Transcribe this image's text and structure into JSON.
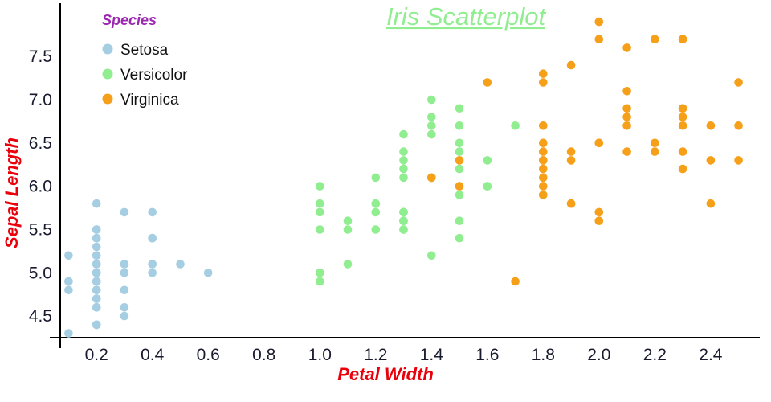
{
  "chart_data": {
    "type": "scatter",
    "title": "Iris Scatterplot",
    "xlabel": "Petal Width",
    "ylabel": "Sepal Length",
    "xlim": [
      0.07,
      2.55
    ],
    "ylim": [
      4.25,
      8.05
    ],
    "x_ticks": [
      "0.2",
      "0.4",
      "0.6",
      "0.8",
      "1.0",
      "1.2",
      "1.4",
      "1.6",
      "1.8",
      "2.0",
      "2.2",
      "2.4"
    ],
    "y_ticks": [
      "4.5",
      "5.0",
      "5.5",
      "6.0",
      "6.5",
      "7.0",
      "7.5"
    ],
    "legend": {
      "title": "Species",
      "position": "top-left"
    },
    "grid": false,
    "axis_color": "#000000",
    "tick_color": "#1a1a2e",
    "title_color": "#90ee90",
    "label_color": "#e8000b",
    "legend_title_color": "#9c27b0",
    "series": [
      {
        "name": "Setosa",
        "color": "#a6cee3",
        "points": [
          [
            0.2,
            5.1
          ],
          [
            0.2,
            4.9
          ],
          [
            0.2,
            4.7
          ],
          [
            0.2,
            4.6
          ],
          [
            0.2,
            5.0
          ],
          [
            0.4,
            5.4
          ],
          [
            0.3,
            4.6
          ],
          [
            0.2,
            5.0
          ],
          [
            0.2,
            4.4
          ],
          [
            0.1,
            4.9
          ],
          [
            0.2,
            5.4
          ],
          [
            0.2,
            4.8
          ],
          [
            0.1,
            4.8
          ],
          [
            0.1,
            4.3
          ],
          [
            0.2,
            5.8
          ],
          [
            0.4,
            5.7
          ],
          [
            0.4,
            5.4
          ],
          [
            0.3,
            5.1
          ],
          [
            0.3,
            5.7
          ],
          [
            0.3,
            5.1
          ],
          [
            0.2,
            5.4
          ],
          [
            0.4,
            5.1
          ],
          [
            0.2,
            4.6
          ],
          [
            0.5,
            5.1
          ],
          [
            0.2,
            4.8
          ],
          [
            0.2,
            5.0
          ],
          [
            0.4,
            5.0
          ],
          [
            0.2,
            5.2
          ],
          [
            0.2,
            5.2
          ],
          [
            0.2,
            4.7
          ],
          [
            0.2,
            4.8
          ],
          [
            0.4,
            5.4
          ],
          [
            0.1,
            5.2
          ],
          [
            0.2,
            5.5
          ],
          [
            0.2,
            4.9
          ],
          [
            0.2,
            5.0
          ],
          [
            0.2,
            5.5
          ],
          [
            0.1,
            4.9
          ],
          [
            0.2,
            4.4
          ],
          [
            0.2,
            5.1
          ],
          [
            0.3,
            5.0
          ],
          [
            0.3,
            4.5
          ],
          [
            0.2,
            4.4
          ],
          [
            0.6,
            5.0
          ],
          [
            0.4,
            5.1
          ],
          [
            0.3,
            4.8
          ],
          [
            0.2,
            5.1
          ],
          [
            0.2,
            4.6
          ],
          [
            0.2,
            5.3
          ],
          [
            0.2,
            5.0
          ]
        ]
      },
      {
        "name": "Versicolor",
        "color": "#90ee90",
        "points": [
          [
            1.4,
            7.0
          ],
          [
            1.5,
            6.4
          ],
          [
            1.5,
            6.9
          ],
          [
            1.3,
            5.5
          ],
          [
            1.5,
            6.5
          ],
          [
            1.3,
            5.7
          ],
          [
            1.6,
            6.3
          ],
          [
            1.0,
            4.9
          ],
          [
            1.3,
            6.6
          ],
          [
            1.4,
            5.2
          ],
          [
            1.0,
            5.0
          ],
          [
            1.5,
            5.9
          ],
          [
            1.0,
            6.0
          ],
          [
            1.4,
            6.1
          ],
          [
            1.3,
            5.6
          ],
          [
            1.4,
            6.7
          ],
          [
            1.5,
            5.6
          ],
          [
            1.0,
            5.8
          ],
          [
            1.5,
            6.2
          ],
          [
            1.1,
            5.6
          ],
          [
            1.8,
            5.9
          ],
          [
            1.3,
            6.1
          ],
          [
            1.5,
            6.3
          ],
          [
            1.2,
            6.1
          ],
          [
            1.3,
            6.4
          ],
          [
            1.4,
            6.6
          ],
          [
            1.4,
            6.8
          ],
          [
            1.7,
            6.7
          ],
          [
            1.5,
            6.0
          ],
          [
            1.0,
            5.7
          ],
          [
            1.1,
            5.5
          ],
          [
            1.0,
            5.5
          ],
          [
            1.2,
            5.8
          ],
          [
            1.6,
            6.0
          ],
          [
            1.5,
            5.4
          ],
          [
            1.6,
            6.0
          ],
          [
            1.5,
            6.7
          ],
          [
            1.3,
            6.3
          ],
          [
            1.3,
            5.6
          ],
          [
            1.3,
            5.5
          ],
          [
            1.2,
            5.5
          ],
          [
            1.4,
            6.1
          ],
          [
            1.2,
            5.8
          ],
          [
            1.0,
            5.0
          ],
          [
            1.3,
            5.6
          ],
          [
            1.2,
            5.7
          ],
          [
            1.3,
            5.7
          ],
          [
            1.3,
            6.2
          ],
          [
            1.1,
            5.1
          ],
          [
            1.3,
            5.7
          ]
        ]
      },
      {
        "name": "Virginica",
        "color": "#f6a01a",
        "points": [
          [
            2.5,
            6.3
          ],
          [
            1.9,
            5.8
          ],
          [
            2.1,
            7.1
          ],
          [
            1.8,
            6.3
          ],
          [
            2.2,
            6.5
          ],
          [
            2.1,
            7.6
          ],
          [
            1.7,
            4.9
          ],
          [
            1.8,
            7.3
          ],
          [
            1.8,
            6.7
          ],
          [
            2.5,
            7.2
          ],
          [
            2.0,
            6.5
          ],
          [
            1.9,
            6.4
          ],
          [
            2.1,
            6.8
          ],
          [
            2.0,
            5.7
          ],
          [
            2.4,
            5.8
          ],
          [
            2.3,
            6.4
          ],
          [
            1.8,
            6.5
          ],
          [
            2.2,
            7.7
          ],
          [
            2.3,
            7.7
          ],
          [
            1.5,
            6.0
          ],
          [
            2.3,
            6.9
          ],
          [
            2.0,
            5.6
          ],
          [
            2.0,
            7.7
          ],
          [
            1.8,
            6.3
          ],
          [
            2.1,
            6.7
          ],
          [
            1.8,
            7.2
          ],
          [
            1.8,
            6.2
          ],
          [
            1.8,
            6.1
          ],
          [
            2.1,
            6.4
          ],
          [
            1.6,
            7.2
          ],
          [
            1.9,
            7.4
          ],
          [
            2.0,
            7.9
          ],
          [
            2.2,
            6.4
          ],
          [
            1.5,
            6.3
          ],
          [
            1.4,
            6.1
          ],
          [
            2.3,
            7.7
          ],
          [
            2.4,
            6.3
          ],
          [
            1.8,
            6.4
          ],
          [
            1.8,
            6.0
          ],
          [
            2.1,
            6.9
          ],
          [
            2.4,
            6.7
          ],
          [
            2.3,
            6.9
          ],
          [
            1.9,
            5.8
          ],
          [
            2.3,
            6.8
          ],
          [
            2.5,
            6.7
          ],
          [
            2.3,
            6.7
          ],
          [
            1.9,
            6.3
          ],
          [
            2.0,
            6.5
          ],
          [
            2.3,
            6.2
          ],
          [
            1.8,
            5.9
          ]
        ]
      }
    ]
  }
}
